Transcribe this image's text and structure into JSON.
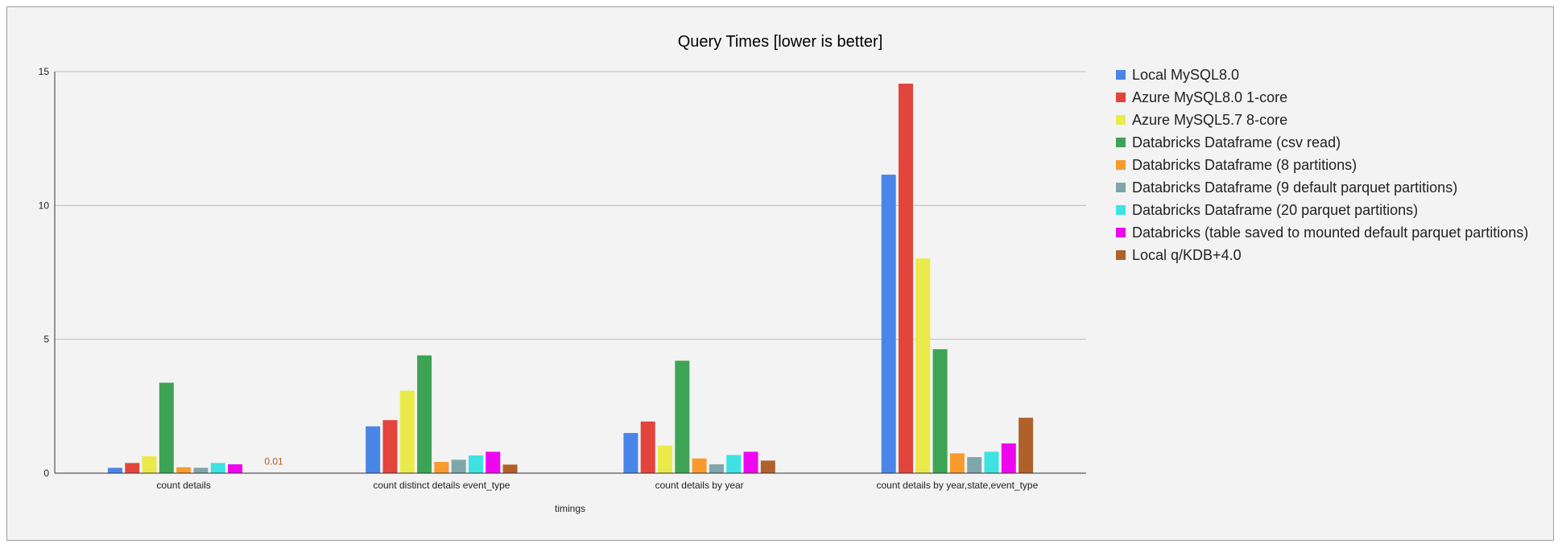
{
  "chart_data": {
    "type": "bar",
    "title": "Query Times [lower is better]",
    "xlabel": "timings",
    "ylabel": "",
    "ylim": [
      0,
      15
    ],
    "yticks": [
      0,
      5,
      10,
      15
    ],
    "grid": true,
    "legend_position": "right",
    "categories": [
      "count details",
      "count distinct details event_type",
      "count details by year",
      "count details by year,state,event_type"
    ],
    "series": [
      {
        "name": "Local MySQL8.0",
        "color": "#4a86e8",
        "values": [
          0.2,
          1.75,
          1.5,
          11.15
        ]
      },
      {
        "name": "Azure MySQL8.0 1-core",
        "color": "#e2453c",
        "values": [
          0.38,
          1.98,
          1.93,
          14.55
        ]
      },
      {
        "name": "Azure MySQL5.7 8-core",
        "color": "#eaea4b",
        "values": [
          0.63,
          3.08,
          1.03,
          8.02
        ]
      },
      {
        "name": "Databricks Dataframe (csv read)",
        "color": "#3ea455",
        "values": [
          3.38,
          4.4,
          4.2,
          4.63
        ]
      },
      {
        "name": "Databricks Dataframe (8 partitions)",
        "color": "#f79b2e",
        "values": [
          0.22,
          0.42,
          0.55,
          0.74
        ]
      },
      {
        "name": "Databricks Dataframe (9 default parquet partitions)",
        "color": "#7fa6ab",
        "values": [
          0.2,
          0.5,
          0.33,
          0.6
        ]
      },
      {
        "name": "Databricks Dataframe (20 parquet partitions)",
        "color": "#3ee2e2",
        "values": [
          0.38,
          0.66,
          0.68,
          0.8
        ]
      },
      {
        "name": "Databricks (table saved to mounted default parquet partitions)",
        "color": "#ee07ee",
        "values": [
          0.33,
          0.8,
          0.8,
          1.11
        ]
      },
      {
        "name": "Local q/KDB+4.0",
        "color": "#b0612b",
        "values": [
          0.01,
          0.32,
          0.47,
          2.07
        ]
      }
    ],
    "annotations": [
      {
        "series": 8,
        "category": 0,
        "text": "0.01",
        "color": "#b0612b"
      }
    ]
  }
}
